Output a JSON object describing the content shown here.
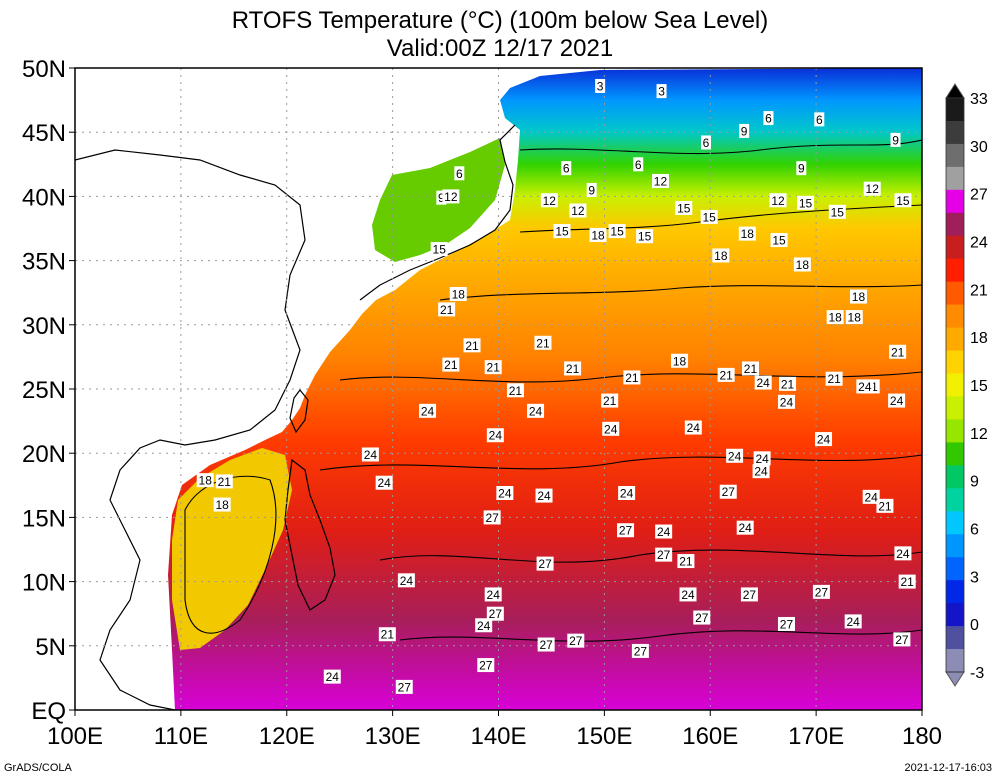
{
  "title": "RTOFS Temperature (°C) (100m below Sea Level)",
  "subtitle": "Valid:00Z 12/17 2021",
  "lat_labels": [
    "50N",
    "45N",
    "40N",
    "35N",
    "30N",
    "25N",
    "20N",
    "15N",
    "10N",
    "5N",
    "EQ"
  ],
  "lon_labels": [
    "100E",
    "110E",
    "120E",
    "130E",
    "140E",
    "150E",
    "160E",
    "170E",
    "180"
  ],
  "colorbar": {
    "levels": [
      33,
      30,
      27,
      24,
      21,
      18,
      15,
      12,
      9,
      6,
      3,
      0,
      -3
    ],
    "colors": [
      "#1a1a1a",
      "#3c3c3c",
      "#6e6e6e",
      "#a0a0a0",
      "#e600e6",
      "#a01e5a",
      "#c81e1e",
      "#ff1e00",
      "#ff5a00",
      "#ff8c00",
      "#ffaa00",
      "#ffd200",
      "#f0f000",
      "#c8f000",
      "#96e600",
      "#32c800",
      "#00c864",
      "#00d2a0",
      "#00c8ff",
      "#0096ff",
      "#0064ff",
      "#0028e6",
      "#1414c8",
      "#5050a0",
      "#8c8cb4"
    ]
  },
  "contour_labels": [
    {
      "t": "3",
      "lon": 149.6,
      "lat": 48.6
    },
    {
      "t": "3",
      "lon": 155.4,
      "lat": 48.2
    },
    {
      "t": "6",
      "lon": 136.3,
      "lat": 41.8
    },
    {
      "t": "6",
      "lon": 146.4,
      "lat": 42.2
    },
    {
      "t": "6",
      "lon": 153.2,
      "lat": 42.5
    },
    {
      "t": "6",
      "lon": 165.5,
      "lat": 46.1
    },
    {
      "t": "6",
      "lon": 170.3,
      "lat": 46.0
    },
    {
      "t": "6",
      "lon": 159.6,
      "lat": 44.2
    },
    {
      "t": "9",
      "lon": 134.6,
      "lat": 39.9
    },
    {
      "t": "9",
      "lon": 148.8,
      "lat": 40.5
    },
    {
      "t": "9",
      "lon": 163.2,
      "lat": 45.1
    },
    {
      "t": "9",
      "lon": 168.6,
      "lat": 42.2
    },
    {
      "t": "9",
      "lon": 177.5,
      "lat": 44.4
    },
    {
      "t": "12",
      "lon": 135.5,
      "lat": 40.0
    },
    {
      "t": "12",
      "lon": 144.8,
      "lat": 39.7
    },
    {
      "t": "12",
      "lon": 147.5,
      "lat": 38.9
    },
    {
      "t": "12",
      "lon": 155.3,
      "lat": 41.2
    },
    {
      "t": "12",
      "lon": 166.4,
      "lat": 39.7
    },
    {
      "t": "12",
      "lon": 175.3,
      "lat": 40.6
    },
    {
      "t": "15",
      "lon": 134.4,
      "lat": 35.9
    },
    {
      "t": "15",
      "lon": 146.0,
      "lat": 37.3
    },
    {
      "t": "15",
      "lon": 151.2,
      "lat": 37.3
    },
    {
      "t": "15",
      "lon": 153.8,
      "lat": 36.9
    },
    {
      "t": "15",
      "lon": 157.5,
      "lat": 39.1
    },
    {
      "t": "15",
      "lon": 159.9,
      "lat": 38.4
    },
    {
      "t": "15",
      "lon": 166.5,
      "lat": 36.6
    },
    {
      "t": "15",
      "lon": 169.0,
      "lat": 39.5
    },
    {
      "t": "15",
      "lon": 172.0,
      "lat": 38.8
    },
    {
      "t": "15",
      "lon": 178.2,
      "lat": 39.7
    },
    {
      "t": "18",
      "lon": 136.2,
      "lat": 32.4
    },
    {
      "t": "18",
      "lon": 149.4,
      "lat": 37.0
    },
    {
      "t": "18",
      "lon": 161.0,
      "lat": 35.4
    },
    {
      "t": "18",
      "lon": 163.5,
      "lat": 37.1
    },
    {
      "t": "18",
      "lon": 168.7,
      "lat": 34.7
    },
    {
      "t": "18",
      "lon": 173.6,
      "lat": 30.6
    },
    {
      "t": "18",
      "lon": 171.8,
      "lat": 30.6
    },
    {
      "t": "18",
      "lon": 174.0,
      "lat": 32.2
    },
    {
      "t": "18",
      "lon": 157.1,
      "lat": 27.2
    },
    {
      "t": "18",
      "lon": 112.3,
      "lat": 17.9
    },
    {
      "t": "18",
      "lon": 113.9,
      "lat": 16.0
    },
    {
      "t": "21",
      "lon": 135.1,
      "lat": 31.2
    },
    {
      "t": "21",
      "lon": 137.5,
      "lat": 28.4
    },
    {
      "t": "21",
      "lon": 139.5,
      "lat": 26.7
    },
    {
      "t": "21",
      "lon": 141.6,
      "lat": 24.9
    },
    {
      "t": "21",
      "lon": 144.2,
      "lat": 28.6
    },
    {
      "t": "21",
      "lon": 135.5,
      "lat": 26.9
    },
    {
      "t": "21",
      "lon": 147.0,
      "lat": 26.6
    },
    {
      "t": "21",
      "lon": 152.6,
      "lat": 25.9
    },
    {
      "t": "21",
      "lon": 150.5,
      "lat": 24.1
    },
    {
      "t": "21",
      "lon": 161.5,
      "lat": 26.1
    },
    {
      "t": "21",
      "lon": 163.8,
      "lat": 26.6
    },
    {
      "t": "21",
      "lon": 167.3,
      "lat": 25.4
    },
    {
      "t": "21",
      "lon": 171.7,
      "lat": 25.8
    },
    {
      "t": "21",
      "lon": 175.2,
      "lat": 25.2
    },
    {
      "t": "21",
      "lon": 177.7,
      "lat": 27.9
    },
    {
      "t": "21",
      "lon": 114.1,
      "lat": 17.8
    },
    {
      "t": "21",
      "lon": 176.5,
      "lat": 15.9
    },
    {
      "t": "21",
      "lon": 157.7,
      "lat": 11.6
    },
    {
      "t": "21",
      "lon": 178.6,
      "lat": 10.0
    },
    {
      "t": "21",
      "lon": 129.5,
      "lat": 5.9
    },
    {
      "t": "24",
      "lon": 133.3,
      "lat": 23.3
    },
    {
      "t": "24",
      "lon": 127.9,
      "lat": 19.9
    },
    {
      "t": "24",
      "lon": 129.2,
      "lat": 17.7
    },
    {
      "t": "24",
      "lon": 139.7,
      "lat": 21.4
    },
    {
      "t": "24",
      "lon": 143.5,
      "lat": 23.3
    },
    {
      "t": "24",
      "lon": 150.6,
      "lat": 21.9
    },
    {
      "t": "24",
      "lon": 158.4,
      "lat": 22.0
    },
    {
      "t": "24",
      "lon": 162.3,
      "lat": 19.8
    },
    {
      "t": "24",
      "lon": 164.9,
      "lat": 19.6
    },
    {
      "t": "24",
      "lon": 164.8,
      "lat": 18.6
    },
    {
      "t": "24",
      "lon": 165.0,
      "lat": 25.5
    },
    {
      "t": "24",
      "lon": 167.2,
      "lat": 24.0
    },
    {
      "t": "24",
      "lon": 174.6,
      "lat": 25.2
    },
    {
      "t": "24",
      "lon": 177.6,
      "lat": 24.1
    },
    {
      "t": "24",
      "lon": 170.7,
      "lat": 21.1
    },
    {
      "t": "24",
      "lon": 175.2,
      "lat": 16.6
    },
    {
      "t": "24",
      "lon": 178.2,
      "lat": 12.2
    },
    {
      "t": "24",
      "lon": 140.6,
      "lat": 16.9
    },
    {
      "t": "24",
      "lon": 144.3,
      "lat": 16.7
    },
    {
      "t": "24",
      "lon": 152.1,
      "lat": 16.9
    },
    {
      "t": "24",
      "lon": 155.6,
      "lat": 13.9
    },
    {
      "t": "24",
      "lon": 163.3,
      "lat": 14.2
    },
    {
      "t": "24",
      "lon": 131.3,
      "lat": 10.1
    },
    {
      "t": "24",
      "lon": 139.5,
      "lat": 9.0
    },
    {
      "t": "24",
      "lon": 138.6,
      "lat": 6.6
    },
    {
      "t": "24",
      "lon": 157.9,
      "lat": 9.0
    },
    {
      "t": "24",
      "lon": 173.5,
      "lat": 6.9
    },
    {
      "t": "24",
      "lon": 124.3,
      "lat": 2.6
    },
    {
      "t": "27",
      "lon": 139.4,
      "lat": 15.0
    },
    {
      "t": "27",
      "lon": 152.0,
      "lat": 14.0
    },
    {
      "t": "27",
      "lon": 155.6,
      "lat": 12.1
    },
    {
      "t": "27",
      "lon": 161.7,
      "lat": 17.0
    },
    {
      "t": "27",
      "lon": 144.4,
      "lat": 11.4
    },
    {
      "t": "27",
      "lon": 139.7,
      "lat": 7.5
    },
    {
      "t": "27",
      "lon": 147.3,
      "lat": 5.4
    },
    {
      "t": "27",
      "lon": 144.5,
      "lat": 5.1
    },
    {
      "t": "27",
      "lon": 138.8,
      "lat": 3.5
    },
    {
      "t": "27",
      "lon": 159.2,
      "lat": 7.2
    },
    {
      "t": "27",
      "lon": 153.4,
      "lat": 4.6
    },
    {
      "t": "27",
      "lon": 163.7,
      "lat": 9.0
    },
    {
      "t": "27",
      "lon": 167.2,
      "lat": 6.7
    },
    {
      "t": "27",
      "lon": 170.5,
      "lat": 9.2
    },
    {
      "t": "27",
      "lon": 178.1,
      "lat": 5.5
    },
    {
      "t": "27",
      "lon": 131.1,
      "lat": 1.8
    }
  ],
  "footer_left": "GrADS/COLA",
  "footer_right": "2021-12-17-16:03"
}
